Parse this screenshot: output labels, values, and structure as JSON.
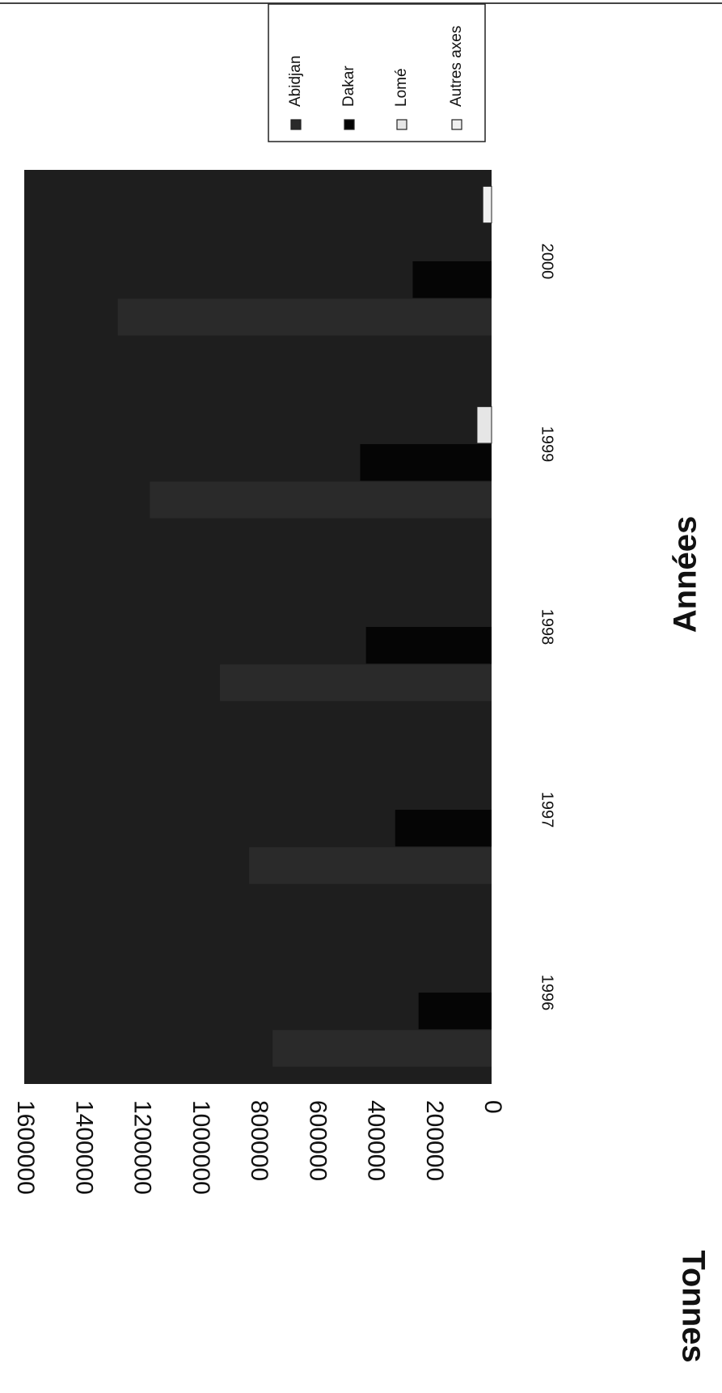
{
  "chart_data": {
    "type": "bar",
    "orientation": "rotated-90-clockwise",
    "stacked": false,
    "categories": [
      "1996",
      "1997",
      "1998",
      "1999",
      "2000"
    ],
    "series": [
      {
        "name": "Abidjan",
        "values": [
          750000,
          830000,
          930000,
          1170000,
          1280000
        ],
        "color": "#2a2a2a"
      },
      {
        "name": "Dakar",
        "values": [
          250000,
          330000,
          430000,
          450000,
          270000
        ],
        "color": "#050505"
      },
      {
        "name": "Lomé",
        "values": [
          0,
          0,
          0,
          50000,
          0
        ],
        "color": "#e6e6e6"
      },
      {
        "name": "Autres axes",
        "values": [
          0,
          0,
          0,
          0,
          30000
        ],
        "color": "#f0f0f0"
      }
    ],
    "yticks": [
      "0",
      "200000",
      "400000",
      "600000",
      "800000",
      "1000000",
      "1200000",
      "1400000",
      "1600000"
    ],
    "ylim": [
      0,
      1600000
    ],
    "xlabel": "Années",
    "ylabel": "Tonnes",
    "legend": "top-right",
    "grid": false,
    "plot_background": "#1e1e1e"
  }
}
